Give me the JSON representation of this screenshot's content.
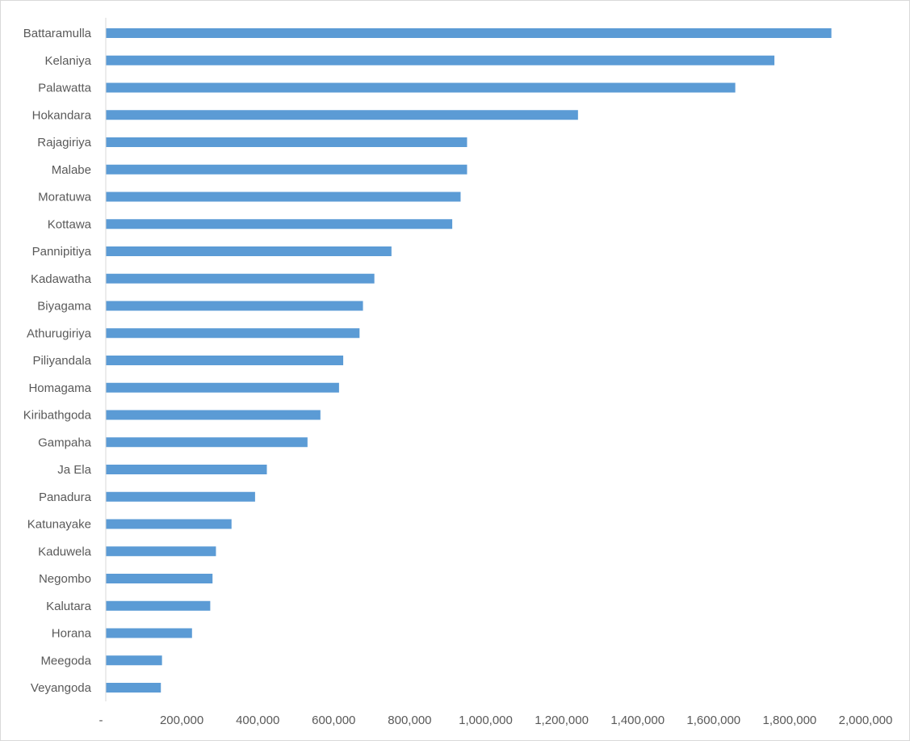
{
  "chart_data": {
    "type": "bar",
    "orientation": "horizontal",
    "categories": [
      "Battaramulla",
      "Kelaniya",
      "Palawatta",
      "Hokandara",
      "Rajagiriya",
      "Malabe",
      "Moratuwa",
      "Kottawa",
      "Pannipitiya",
      "Kadawatha",
      "Biyagama",
      "Athurugiriya",
      "Piliyandala",
      "Homagama",
      "Kiribathgoda",
      "Gampaha",
      "Ja Ela",
      "Panadura",
      "Katunayake",
      "Kaduwela",
      "Negombo",
      "Kalutara",
      "Horana",
      "Meegoda",
      "Veyangoda"
    ],
    "values": [
      1910000,
      1760000,
      1657000,
      1243000,
      951000,
      951000,
      934000,
      912000,
      752000,
      707000,
      677000,
      668000,
      625000,
      614000,
      565000,
      531000,
      424000,
      393000,
      331000,
      290000,
      281000,
      275000,
      227000,
      148000,
      145000
    ],
    "xlim": [
      0,
      2000000
    ],
    "x_ticks": [
      0,
      200000,
      400000,
      600000,
      800000,
      1000000,
      1200000,
      1400000,
      1600000,
      1800000,
      2000000
    ],
    "x_tick_labels": [
      "-",
      "200,000",
      "400,000",
      "600,000",
      "800,000",
      "1,000,000",
      "1,200,000",
      "1,400,000",
      "1,600,000",
      "1,800,000",
      "2,000,000"
    ],
    "title": "",
    "xlabel": "",
    "ylabel": "",
    "grid": false,
    "legend": "none",
    "bar_color": "#5b9bd5",
    "axis_color": "#d9d9d9",
    "text_color": "#595959"
  }
}
